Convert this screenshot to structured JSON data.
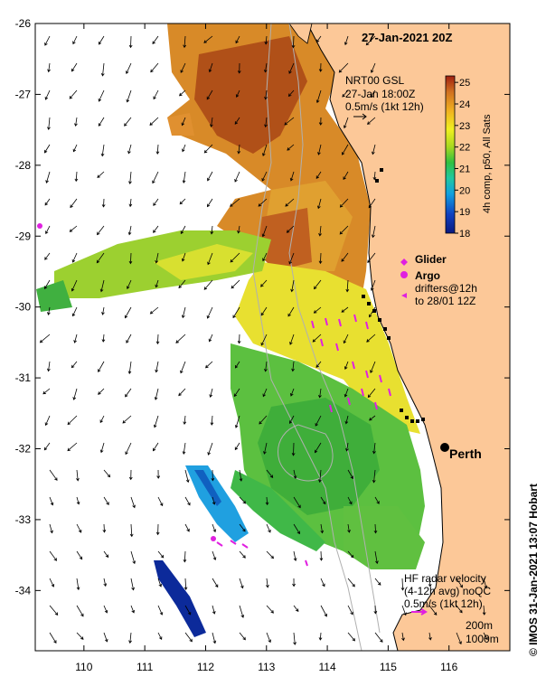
{
  "title": "27-Jan-2021 20Z",
  "axes": {
    "lon_ticks": [
      "110",
      "111",
      "112",
      "113",
      "114",
      "115",
      "116"
    ],
    "lat_ticks": [
      "-26",
      "-27",
      "-28",
      "-29",
      "-30",
      "-31",
      "-32",
      "-33",
      "-34"
    ],
    "lon_range": [
      109.2,
      117.0
    ],
    "lat_range": [
      -26.0,
      -34.85
    ]
  },
  "gsl_legend": {
    "line1": "NRT00 GSL",
    "line2": "27-Jan 18:00Z",
    "line3": "0.5m/s (1kt 12h)"
  },
  "colorbar": {
    "ticks": [
      "25",
      "24",
      "23",
      "22",
      "21",
      "20",
      "19",
      "18"
    ],
    "title": "4h comp, p50, All Sats",
    "range": [
      18,
      25.3
    ],
    "colors": [
      "#0a1a80",
      "#1040c0",
      "#10a0e0",
      "#20c8a0",
      "#30c040",
      "#a8d820",
      "#f0f020",
      "#f0b020",
      "#d07020",
      "#a02010"
    ]
  },
  "legend": {
    "glider_label": "Glider",
    "argo_label": "Argo",
    "drifters_line1": "drifters@12h",
    "drifters_line2": "to 28/01 12Z"
  },
  "city": {
    "name": "Perth",
    "lon": 115.86,
    "lat": -31.95
  },
  "hf_radar": {
    "line1": "HF radar velocity",
    "line2": "(4-12h avg) noQC",
    "line3": "0.5m/s (1kt 12h)"
  },
  "isobaths": {
    "line1": "200m",
    "line2": "1000m"
  },
  "credit": "© IMOS 31-Jan-2021 13:07 Hobart",
  "colors": {
    "land": "#fcc898",
    "glider": "#e020e0",
    "frame": "#000000"
  }
}
